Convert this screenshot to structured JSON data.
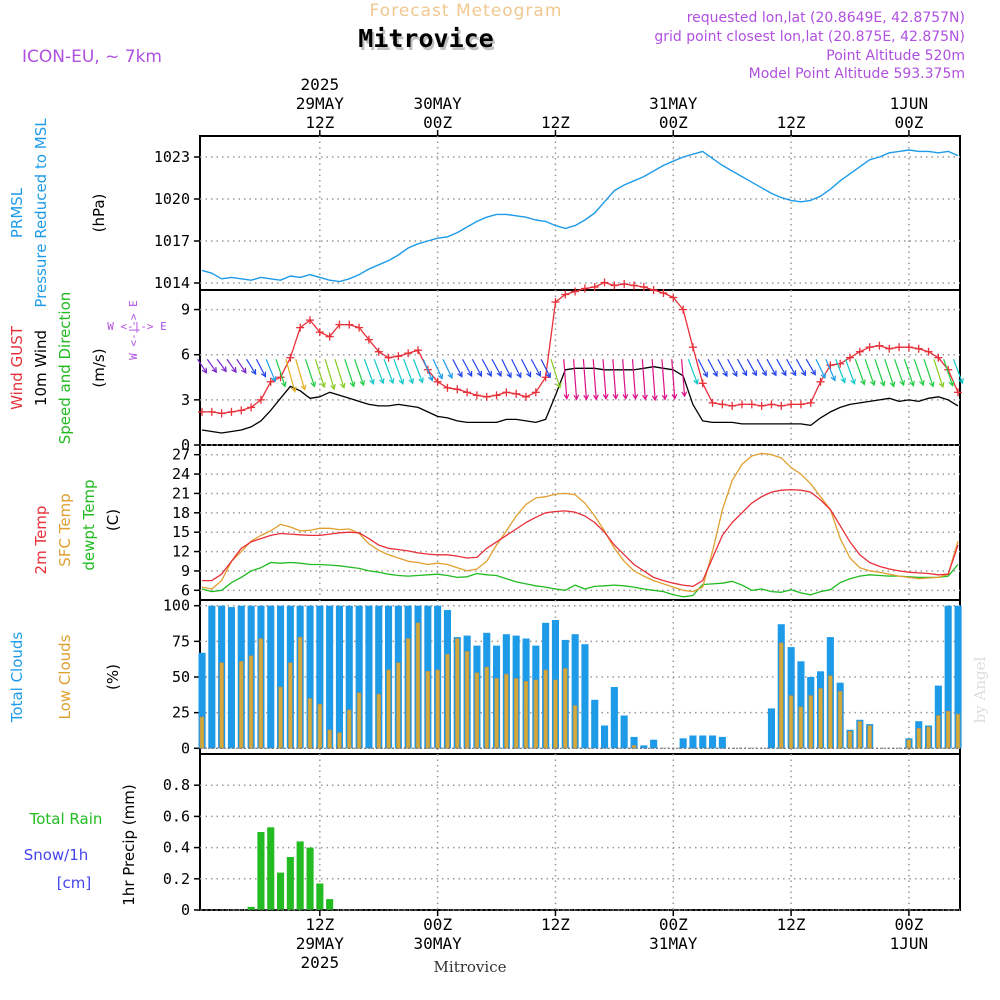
{
  "header": {
    "top_title": "Forecast Meteogram",
    "station": "Mitrovice",
    "model": "ICON-EU, ~ 7km",
    "requested": "requested lon,lat (20.8649E, 42.8757N)",
    "gridpoint": "grid point closest lon,lat (20.875E, 42.875N)",
    "point_alt": "Point Altitude 520m",
    "model_alt": "Model Point Altitude 593.375m",
    "bottom_label": "Mitrovice",
    "credit": "by Angel"
  },
  "time_axis": {
    "top": [
      {
        "h": 12,
        "lines": [
          "2025",
          "29MAY",
          "12Z"
        ]
      },
      {
        "h": 24,
        "lines": [
          "30MAY",
          "00Z"
        ]
      },
      {
        "h": 36,
        "lines": [
          "12Z"
        ]
      },
      {
        "h": 48,
        "lines": [
          "31MAY",
          "00Z"
        ]
      },
      {
        "h": 60,
        "lines": [
          "12Z"
        ]
      },
      {
        "h": 72,
        "lines": [
          "1JUN",
          "00Z"
        ]
      }
    ],
    "bottom": [
      {
        "h": 12,
        "lines": [
          "12Z",
          "29MAY",
          "2025"
        ]
      },
      {
        "h": 24,
        "lines": [
          "00Z",
          "30MAY"
        ]
      },
      {
        "h": 36,
        "lines": [
          "12Z"
        ]
      },
      {
        "h": 48,
        "lines": [
          "00Z",
          "31MAY"
        ]
      },
      {
        "h": 60,
        "lines": [
          "12Z"
        ]
      },
      {
        "h": 72,
        "lines": [
          "00Z",
          "1JUN"
        ]
      }
    ],
    "hour_range": [
      0,
      77
    ]
  },
  "labels": {
    "p1": [
      {
        "text": "PRMSL",
        "color": "#1e9be8"
      },
      {
        "text": "Pressure Reduced to MSL",
        "color": "#1e9be8"
      },
      {
        "text": "(hPa)",
        "color": "#000000"
      }
    ],
    "p2": [
      {
        "text": "Wind GUST",
        "color": "#e8303a"
      },
      {
        "text": "10m Wind",
        "color": "#000000"
      },
      {
        "text": "Speed and Direction",
        "color": "#22bb22"
      },
      {
        "text": "(m/s)",
        "color": "#000000"
      }
    ],
    "p2_compass": "W <-|-> E",
    "p3": [
      {
        "text": "2m Temp",
        "color": "#e8303a"
      },
      {
        "text": "SFC Temp",
        "color": "#e0a030"
      },
      {
        "text": "dewpt Temp",
        "color": "#22bb22"
      },
      {
        "text": "(C)",
        "color": "#000000"
      }
    ],
    "p4": [
      {
        "text": "Total Clouds",
        "color": "#1e9be8"
      },
      {
        "text": "Low Clouds",
        "color": "#e0a030"
      },
      {
        "text": "(%)",
        "color": "#000000"
      }
    ],
    "p5_rain": "Total  Rain",
    "p5_snow": "Snow/1h",
    "p5_cm": "[cm]",
    "p5_axis": "1hr Precip (mm)"
  },
  "colors": {
    "pressure": "#1e9be8",
    "gust": "#e8303a",
    "wind10": "#000000",
    "t2m": "#e8303a",
    "tsfc": "#e0a030",
    "dewpt": "#22bb22",
    "total_clouds": "#1e9be8",
    "low_clouds": "#d4aa3a",
    "rain": "#22bb22",
    "snow": "#4444ee",
    "title_orange": "#f0c890",
    "info_purple": "#b050e0"
  },
  "chart_data": [
    {
      "type": "line",
      "name": "PRMSL",
      "ylim": [
        1013.5,
        1024.5
      ],
      "yticks": [
        1014,
        1017,
        1020,
        1023
      ],
      "x": [
        0,
        1,
        2,
        3,
        4,
        5,
        6,
        7,
        8,
        9,
        10,
        11,
        12,
        13,
        14,
        15,
        16,
        17,
        18,
        19,
        20,
        21,
        22,
        23,
        24,
        25,
        26,
        27,
        28,
        29,
        30,
        31,
        32,
        33,
        34,
        35,
        36,
        37,
        38,
        39,
        40,
        41,
        42,
        43,
        44,
        45,
        46,
        47,
        48,
        49,
        50,
        51,
        52,
        53,
        54,
        55,
        56,
        57,
        58,
        59,
        60,
        61,
        62,
        63,
        64,
        65,
        66,
        67,
        68,
        69,
        70,
        71,
        72,
        73,
        74,
        75,
        76,
        77
      ],
      "values": [
        1014.9,
        1014.7,
        1014.3,
        1014.4,
        1014.3,
        1014.2,
        1014.4,
        1014.3,
        1014.2,
        1014.5,
        1014.4,
        1014.6,
        1014.4,
        1014.2,
        1014.1,
        1014.3,
        1014.6,
        1015.0,
        1015.3,
        1015.6,
        1016.0,
        1016.5,
        1016.8,
        1017.0,
        1017.2,
        1017.3,
        1017.6,
        1018.0,
        1018.4,
        1018.7,
        1018.9,
        1018.9,
        1018.8,
        1018.7,
        1018.5,
        1018.4,
        1018.1,
        1017.9,
        1018.1,
        1018.5,
        1019.0,
        1019.8,
        1020.6,
        1021.0,
        1021.3,
        1021.6,
        1022.0,
        1022.4,
        1022.7,
        1023.0,
        1023.2,
        1023.4,
        1022.9,
        1022.4,
        1022.0,
        1021.6,
        1021.2,
        1020.8,
        1020.4,
        1020.1,
        1019.9,
        1019.8,
        1019.9,
        1020.2,
        1020.7,
        1021.3,
        1021.8,
        1022.3,
        1022.8,
        1023.0,
        1023.3,
        1023.4,
        1023.5,
        1023.4,
        1023.4,
        1023.3,
        1023.4,
        1023.1
      ]
    },
    {
      "type": "line",
      "name": "Wind",
      "ylim": [
        0,
        10.3
      ],
      "yticks": [
        0,
        3,
        6,
        9
      ],
      "x": [
        0,
        1,
        2,
        3,
        4,
        5,
        6,
        7,
        8,
        9,
        10,
        11,
        12,
        13,
        14,
        15,
        16,
        17,
        18,
        19,
        20,
        21,
        22,
        23,
        24,
        25,
        26,
        27,
        28,
        29,
        30,
        31,
        32,
        33,
        34,
        35,
        36,
        37,
        38,
        39,
        40,
        41,
        42,
        43,
        44,
        45,
        46,
        47,
        48,
        49,
        50,
        51,
        52,
        53,
        54,
        55,
        56,
        57,
        58,
        59,
        60,
        61,
        62,
        63,
        64,
        65,
        66,
        67,
        68,
        69,
        70,
        71,
        72,
        73,
        74,
        75,
        76,
        77
      ],
      "gust": [
        2.2,
        2.2,
        2.1,
        2.2,
        2.3,
        2.5,
        3.0,
        4.2,
        4.5,
        5.8,
        7.8,
        8.3,
        7.5,
        7.2,
        8.0,
        8.0,
        7.8,
        7.0,
        6.2,
        5.8,
        5.9,
        6.1,
        6.3,
        5.0,
        4.2,
        3.8,
        3.7,
        3.5,
        3.3,
        3.2,
        3.3,
        3.5,
        3.4,
        3.2,
        3.5,
        4.5,
        9.5,
        10.0,
        10.2,
        10.4,
        10.5,
        10.8,
        10.6,
        10.7,
        10.6,
        10.5,
        10.3,
        10.1,
        9.8,
        9.0,
        6.5,
        4.1,
        2.8,
        2.7,
        2.6,
        2.7,
        2.7,
        2.6,
        2.7,
        2.6,
        2.7,
        2.7,
        2.8,
        4.2,
        5.3,
        5.4,
        5.8,
        6.2,
        6.5,
        6.6,
        6.4,
        6.5,
        6.5,
        6.4,
        6.2,
        5.8,
        5.0,
        3.5
      ],
      "wind10": [
        1.0,
        0.9,
        0.8,
        0.9,
        1.0,
        1.2,
        1.6,
        2.3,
        3.1,
        3.9,
        3.6,
        3.1,
        3.2,
        3.5,
        3.3,
        3.1,
        2.9,
        2.7,
        2.6,
        2.6,
        2.7,
        2.6,
        2.5,
        2.2,
        1.9,
        1.8,
        1.6,
        1.5,
        1.5,
        1.5,
        1.5,
        1.7,
        1.7,
        1.6,
        1.5,
        1.7,
        3.3,
        5.0,
        5.1,
        5.1,
        5.1,
        5.0,
        5.0,
        5.0,
        5.0,
        5.1,
        5.2,
        5.1,
        5.0,
        4.6,
        2.7,
        1.6,
        1.5,
        1.5,
        1.5,
        1.4,
        1.4,
        1.4,
        1.4,
        1.4,
        1.4,
        1.4,
        1.3,
        1.8,
        2.2,
        2.5,
        2.7,
        2.8,
        2.9,
        3.0,
        3.1,
        2.9,
        3.0,
        2.9,
        3.1,
        3.2,
        3.0,
        2.6
      ]
    },
    {
      "type": "line",
      "name": "Temperature",
      "ylim": [
        4.5,
        28.5
      ],
      "yticks": [
        6,
        9,
        12,
        15,
        18,
        21,
        24,
        27
      ],
      "x": [
        0,
        1,
        2,
        3,
        4,
        5,
        6,
        7,
        8,
        9,
        10,
        11,
        12,
        13,
        14,
        15,
        16,
        17,
        18,
        19,
        20,
        21,
        22,
        23,
        24,
        25,
        26,
        27,
        28,
        29,
        30,
        31,
        32,
        33,
        34,
        35,
        36,
        37,
        38,
        39,
        40,
        41,
        42,
        43,
        44,
        45,
        46,
        47,
        48,
        49,
        50,
        51,
        52,
        53,
        54,
        55,
        56,
        57,
        58,
        59,
        60,
        61,
        62,
        63,
        64,
        65,
        66,
        67,
        68,
        69,
        70,
        71,
        72,
        73,
        74,
        75,
        76,
        77
      ],
      "t2m": [
        7.5,
        7.5,
        8.5,
        10.5,
        12.5,
        13.5,
        14.0,
        14.5,
        14.8,
        14.7,
        14.6,
        14.5,
        14.5,
        14.7,
        14.9,
        15.0,
        14.9,
        14.0,
        13.0,
        12.5,
        12.3,
        12.1,
        11.8,
        11.6,
        11.5,
        11.5,
        11.3,
        11.0,
        11.1,
        12.5,
        13.5,
        14.5,
        15.5,
        16.5,
        17.3,
        18.0,
        18.2,
        18.3,
        18.1,
        17.5,
        16.5,
        15.0,
        13.0,
        11.5,
        10.0,
        9.0,
        8.0,
        7.5,
        7.1,
        6.8,
        6.6,
        7.5,
        11.0,
        14.5,
        16.5,
        18.0,
        19.5,
        20.5,
        21.2,
        21.5,
        21.6,
        21.5,
        21.2,
        20.0,
        18.5,
        16.0,
        13.5,
        11.5,
        10.3,
        9.7,
        9.3,
        9.0,
        8.8,
        8.7,
        8.6,
        8.4,
        8.5,
        13.0
      ],
      "tsfc": [
        6.5,
        6.2,
        7.5,
        10.5,
        12.0,
        13.6,
        14.5,
        15.2,
        16.2,
        15.8,
        15.2,
        15.3,
        15.6,
        15.6,
        15.4,
        15.5,
        14.8,
        13.2,
        12.2,
        11.5,
        11.0,
        10.5,
        10.3,
        10.0,
        10.2,
        10.0,
        9.5,
        9.0,
        9.3,
        10.5,
        13.0,
        15.2,
        17.5,
        19.3,
        20.3,
        20.5,
        20.9,
        21.0,
        20.8,
        19.5,
        17.5,
        15.2,
        12.5,
        10.5,
        9.0,
        8.2,
        7.5,
        7.0,
        6.5,
        6.0,
        5.8,
        6.5,
        12.0,
        18.5,
        23.0,
        25.5,
        26.8,
        27.2,
        27.0,
        26.5,
        25.0,
        24.0,
        22.5,
        20.5,
        18.5,
        14.0,
        11.0,
        9.5,
        9.0,
        8.8,
        8.5,
        8.2,
        8.0,
        7.8,
        7.9,
        8.0,
        8.5,
        13.6
      ]
    },
    {
      "type": "line",
      "name": "Dewpoint",
      "ylim": [
        4.5,
        28.5
      ],
      "x": [
        0,
        1,
        2,
        3,
        4,
        5,
        6,
        7,
        8,
        9,
        10,
        11,
        12,
        13,
        14,
        15,
        16,
        17,
        18,
        19,
        20,
        21,
        22,
        23,
        24,
        25,
        26,
        27,
        28,
        29,
        30,
        31,
        32,
        33,
        34,
        35,
        36,
        37,
        38,
        39,
        40,
        41,
        42,
        43,
        44,
        45,
        46,
        47,
        48,
        49,
        50,
        51,
        52,
        53,
        54,
        55,
        56,
        57,
        58,
        59,
        60,
        61,
        62,
        63,
        64,
        65,
        66,
        67,
        68,
        69,
        70,
        71,
        72,
        73,
        74,
        75,
        76,
        77
      ],
      "dewpt": [
        6.2,
        5.8,
        6.0,
        7.2,
        8.0,
        9.0,
        9.5,
        10.3,
        10.2,
        10.3,
        10.2,
        10.0,
        10.0,
        9.9,
        9.8,
        9.6,
        9.4,
        9.0,
        8.8,
        8.5,
        8.3,
        8.2,
        8.3,
        8.4,
        8.5,
        8.3,
        8.0,
        8.1,
        8.6,
        8.4,
        8.3,
        7.8,
        7.3,
        7.0,
        6.7,
        6.5,
        6.2,
        6.0,
        6.8,
        6.2,
        6.6,
        6.7,
        6.8,
        6.7,
        6.5,
        6.2,
        6.0,
        5.8,
        5.3,
        5.0,
        5.2,
        6.9,
        7.0,
        7.1,
        7.4,
        6.8,
        6.0,
        6.2,
        5.8,
        5.7,
        6.1,
        5.6,
        5.3,
        5.8,
        6.1,
        7.2,
        7.8,
        8.2,
        8.4,
        8.3,
        8.2,
        8.2,
        8.1,
        8.0,
        8.0,
        8.0,
        8.2,
        10.0
      ]
    },
    {
      "type": "bar",
      "name": "Clouds",
      "ylim": [
        -4,
        104
      ],
      "yticks": [
        0,
        25,
        50,
        75,
        100
      ],
      "x": [
        0,
        1,
        2,
        3,
        4,
        5,
        6,
        7,
        8,
        9,
        10,
        11,
        12,
        13,
        14,
        15,
        16,
        17,
        18,
        19,
        20,
        21,
        22,
        23,
        24,
        25,
        26,
        27,
        28,
        29,
        30,
        31,
        32,
        33,
        34,
        35,
        36,
        37,
        38,
        39,
        40,
        41,
        42,
        43,
        44,
        45,
        46,
        47,
        48,
        49,
        50,
        51,
        52,
        53,
        54,
        55,
        56,
        57,
        58,
        59,
        60,
        61,
        62,
        63,
        64,
        65,
        66,
        67,
        68,
        69,
        70,
        71,
        72,
        73,
        74,
        75,
        76,
        77
      ],
      "total": [
        67,
        100,
        100,
        99,
        100,
        100,
        100,
        100,
        100,
        100,
        100,
        100,
        100,
        100,
        100,
        100,
        100,
        100,
        100,
        100,
        100,
        100,
        100,
        100,
        100,
        97,
        78,
        79,
        72,
        81,
        72,
        80,
        79,
        77,
        72,
        88,
        90,
        76,
        80,
        73,
        34,
        16,
        43,
        23,
        8,
        2,
        6,
        0,
        0,
        7,
        9,
        9,
        9,
        8,
        0,
        0,
        0,
        0,
        28,
        87,
        71,
        61,
        50,
        54,
        78,
        46,
        13,
        20,
        17,
        0,
        0,
        0,
        7,
        19,
        16,
        44,
        100,
        100
      ],
      "low": [
        22,
        0,
        60,
        0,
        61,
        65,
        77,
        0,
        43,
        60,
        78,
        35,
        31,
        13,
        11,
        27,
        39,
        0,
        38,
        55,
        60,
        77,
        88,
        54,
        55,
        66,
        77,
        68,
        53,
        57,
        49,
        52,
        49,
        47,
        48,
        55,
        48,
        56,
        30,
        0,
        0,
        0,
        0,
        0,
        2,
        0,
        0,
        0,
        0,
        0,
        0,
        0,
        0,
        0,
        0,
        0,
        0,
        0,
        0,
        74,
        37,
        29,
        37,
        42,
        51,
        40,
        12,
        19,
        16,
        0,
        0,
        0,
        6,
        14,
        15,
        23,
        26,
        24
      ]
    },
    {
      "type": "bar",
      "name": "Precip",
      "ylim": [
        0,
        1.0
      ],
      "yticks": [
        0,
        0.2,
        0.4,
        0.6,
        0.8
      ],
      "x": [
        5,
        6,
        7,
        8,
        9,
        10,
        11,
        12,
        13,
        14
      ],
      "rain": [
        0.02,
        0.5,
        0.53,
        0.24,
        0.34,
        0.44,
        0.4,
        0.17,
        0.07,
        0.0
      ]
    }
  ]
}
